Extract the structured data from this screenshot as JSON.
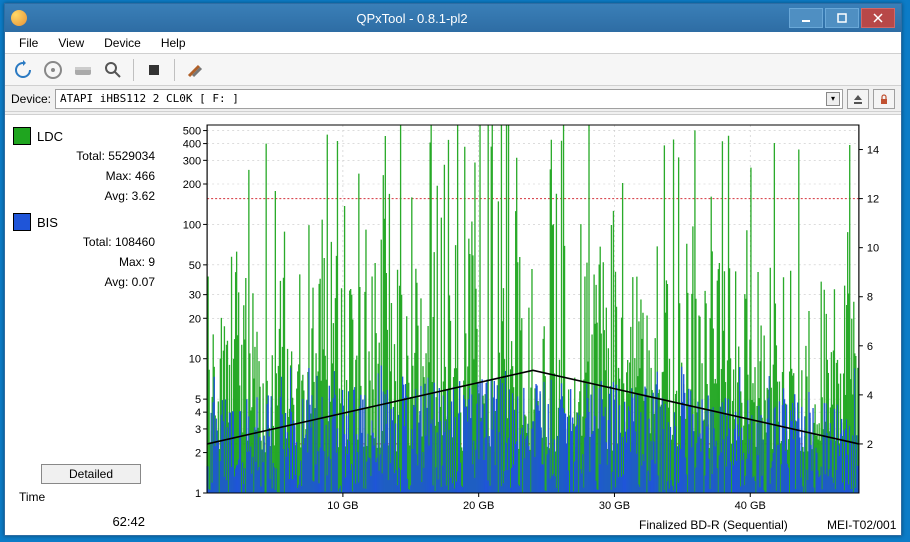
{
  "window": {
    "title": "QPxTool - 0.8.1-pl2"
  },
  "menu": {
    "file": "File",
    "view": "View",
    "device": "Device",
    "help": "Help"
  },
  "device": {
    "label": "Device:",
    "value": "ATAPI   iHBS112   2     CL0K [ F: ]"
  },
  "legend": {
    "ldc": {
      "name": "LDC",
      "color": "#1fa51f",
      "total_label": "Total:",
      "total": "5529034",
      "max_label": "Max:",
      "max": "466",
      "avg_label": "Avg:",
      "avg": "3.62"
    },
    "bis": {
      "name": "BIS",
      "color": "#1f55d8",
      "total_label": "Total:",
      "total": "108460",
      "max_label": "Max:",
      "max": "9",
      "avg_label": "Avg:",
      "avg": "0.07"
    }
  },
  "detailed_label": "Detailed",
  "time": {
    "label": "Time",
    "value": "62:42"
  },
  "footer": {
    "disc": "Finalized BD-R (Sequential)",
    "media": "MEI-T02/001"
  },
  "chart": {
    "type": "bar-dense-log",
    "background_color": "#ffffff",
    "axis_color": "#000000",
    "grid_color": "#c8c8c8",
    "threshold_color": "#d4323b",
    "speed_line_color": "#000000",
    "xlabel_ticks": [
      "10 GB",
      "20 GB",
      "30 GB",
      "40 GB"
    ],
    "xtick_positions_gb": [
      10,
      20,
      30,
      40
    ],
    "xlim_gb": [
      0,
      48
    ],
    "left_axis_label": "",
    "left_ticks": [
      1,
      2,
      3,
      4,
      5,
      10,
      20,
      30,
      50,
      100,
      200,
      300,
      400,
      500
    ],
    "left_scale": "log",
    "left_ylim": [
      1,
      550
    ],
    "right_ticks": [
      2,
      4,
      6,
      8,
      10,
      12,
      14
    ],
    "right_ylim": [
      0,
      15
    ],
    "right_thresholds": [
      2,
      12
    ],
    "tick_fontsize": 11,
    "series": {
      "ldc": {
        "color": "#1fa51f",
        "typical_range": [
          5,
          400
        ],
        "mean": 3.62,
        "max": 466
      },
      "bis": {
        "color": "#1f55d8",
        "typical_range": [
          0,
          9
        ],
        "mean": 0.07,
        "max": 9
      }
    },
    "speed_line_points": [
      [
        0,
        2.0
      ],
      [
        24,
        5.0
      ],
      [
        48,
        2.0
      ]
    ]
  }
}
